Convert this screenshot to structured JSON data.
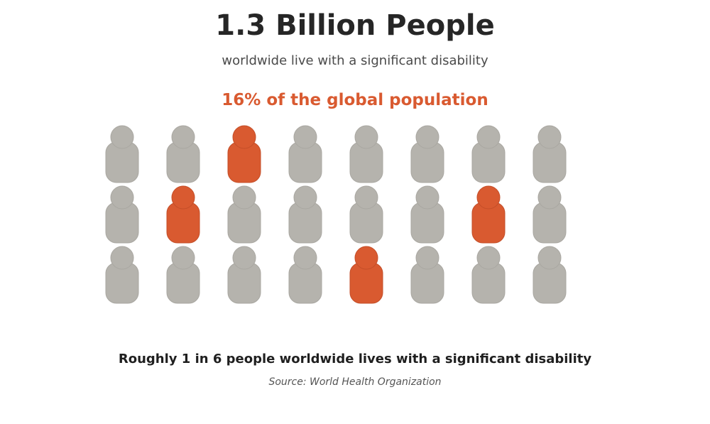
{
  "headline": "1.3 Billion People",
  "subhead": "worldwide live with a significant disability",
  "stat": "16% of the global population",
  "takeaway": "Roughly 1 in 6 people worldwide lives with a significant disability",
  "source": "Source: World Health Organization",
  "colors": {
    "highlight": "#d95a30",
    "base": "#b5b3ad",
    "highlight_edge": "#c44e28",
    "base_edge": "#a9a7a1"
  },
  "chart_data": {
    "type": "pictograph",
    "rows": 3,
    "columns": 8,
    "total_icons": 24,
    "highlighted_icons": 4,
    "highlighted_share_percent": 16,
    "grid": [
      [
        0,
        0,
        1,
        0,
        0,
        0,
        0,
        0
      ],
      [
        0,
        1,
        0,
        0,
        0,
        0,
        1,
        0
      ],
      [
        0,
        0,
        0,
        0,
        1,
        0,
        0,
        0
      ]
    ]
  }
}
